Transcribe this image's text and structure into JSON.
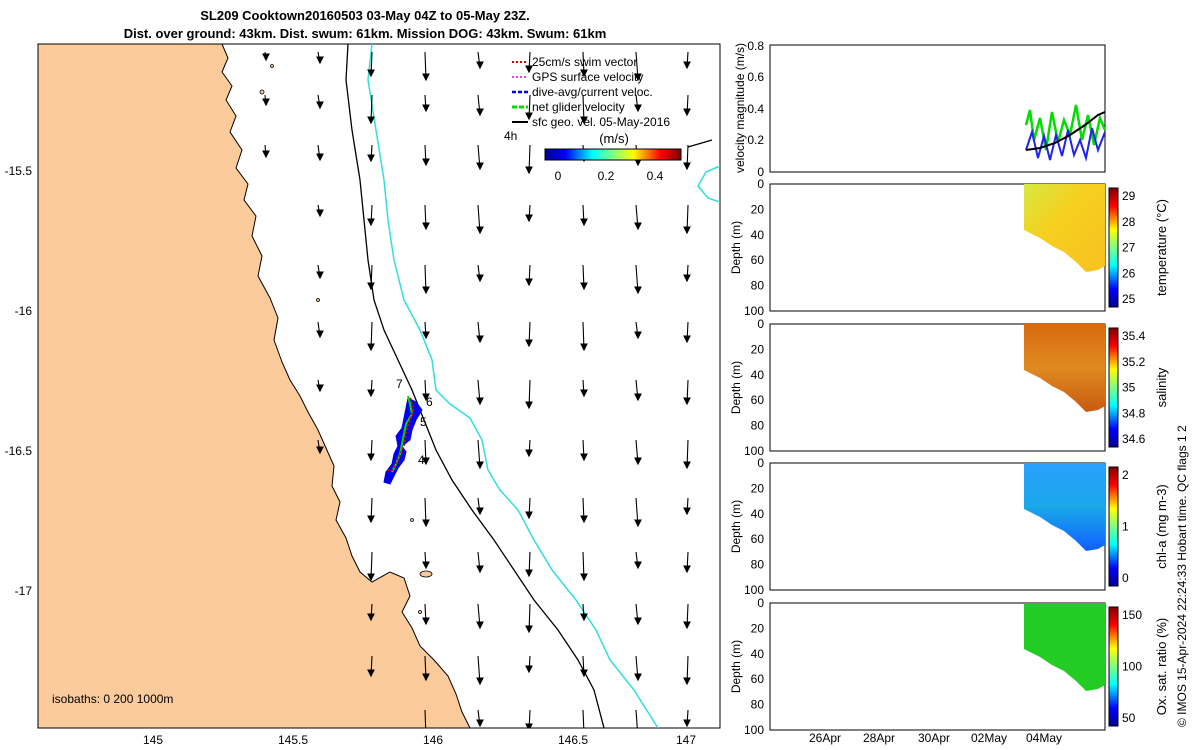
{
  "header": {
    "title_line1": "SL209 Cooktown20160503 03-May 04Z to 05-May 23Z.",
    "title_line2": "Dist. over ground: 43km. Dist. swum: 61km. Mission DOG: 43km. Swum: 61km"
  },
  "map": {
    "x_ticks": [
      "145",
      "145.5",
      "146",
      "146.5",
      "147"
    ],
    "y_ticks": [
      "-15.5",
      "-16",
      "-16.5",
      "-17"
    ],
    "isobath_note": "isobaths: 0   200  1000m",
    "scale_label": "4h",
    "colorbar": {
      "label": "(m/s)",
      "ticks": [
        "0",
        "0.2",
        "0.4"
      ]
    },
    "legend": [
      {
        "label": "25cm/s swim vector",
        "color": "#dd0000"
      },
      {
        "label": "GPS surface velocity",
        "color": "#dd00dd"
      },
      {
        "label": "dive-avg/current veloc.",
        "color": "#0000dd"
      },
      {
        "label": "net glider velocity",
        "color": "#00dd00"
      },
      {
        "label": "sfc geo. vel. 05-May-2016",
        "color": "#000000"
      }
    ],
    "waypoints": [
      "7",
      "6",
      "5",
      "4"
    ],
    "colors": {
      "land": "#fbcb9c",
      "isobath_200": "#000000",
      "isobath_1000": "#33dddd",
      "glider_track": "#0000ee"
    }
  },
  "panels": {
    "velocity": {
      "ylabel": "velocity magnitude (m/s)",
      "y_ticks": [
        "0",
        "0.2",
        "0.4",
        "0.6",
        "0.8"
      ]
    },
    "depth_ticks": [
      "0",
      "20",
      "40",
      "60",
      "80",
      "100"
    ],
    "depth_ylabel": "Depth (m)",
    "temperature": {
      "label": "temperature (°C)",
      "ticks": [
        "29",
        "28",
        "27",
        "26",
        "25"
      ]
    },
    "salinity": {
      "label": "salinity",
      "ticks": [
        "35.4",
        "35.2",
        "35",
        "34.8",
        "34.6"
      ]
    },
    "chla": {
      "label": "chl-a (mg m-3)",
      "ticks": [
        "2",
        "1",
        "0"
      ]
    },
    "oxygen": {
      "label": "Ox. sat. ratio (%)",
      "ticks": [
        "150",
        "100",
        "50"
      ]
    },
    "x_ticks": [
      "26Apr",
      "28Apr",
      "30Apr",
      "02May",
      "04May"
    ]
  },
  "footer": {
    "credit": "© IMOS 15-Apr-2024 22:24:33 Hobart time. QC flags 1  2"
  }
}
